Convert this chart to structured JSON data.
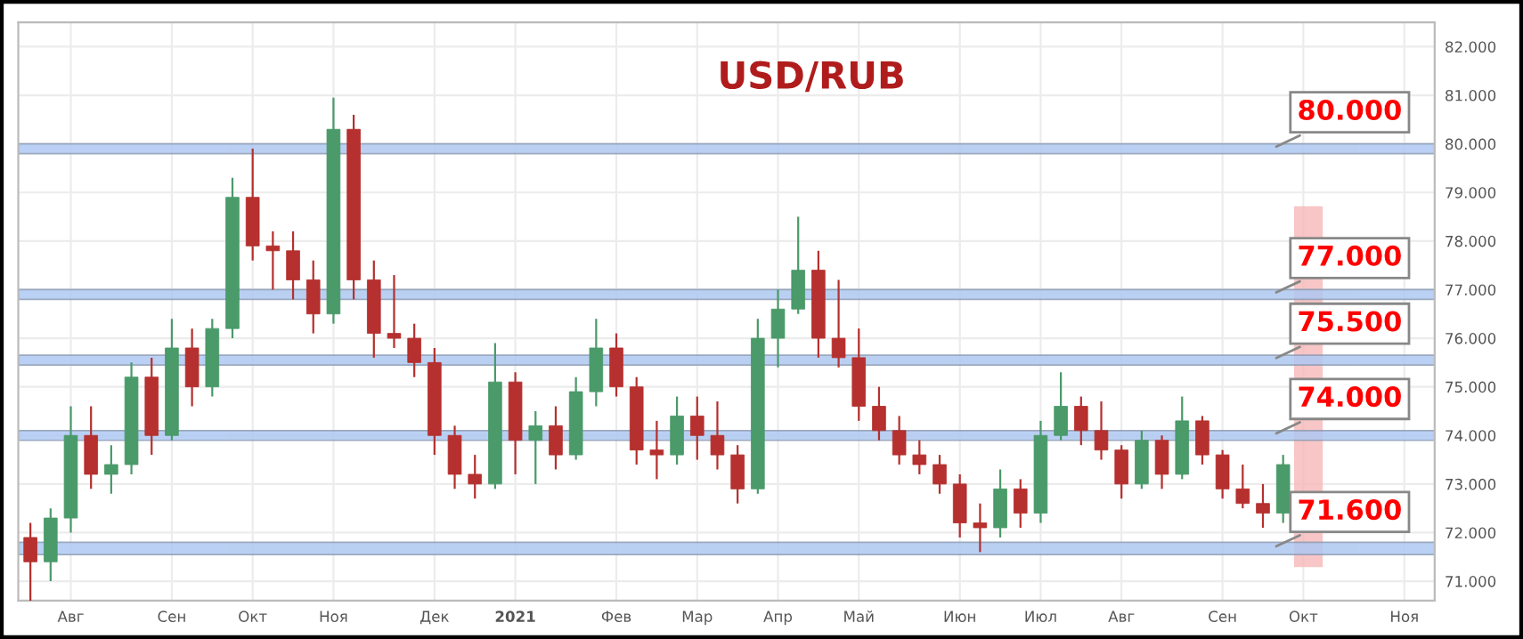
{
  "chart_data": {
    "type": "candlestick",
    "title": "USD/RUB",
    "categories": [
      null,
      null,
      "Авг",
      null,
      null,
      null,
      null,
      "Сен",
      null,
      null,
      null,
      "Окт",
      null,
      null,
      null,
      "Ноя",
      null,
      null,
      null,
      null,
      "Дек",
      null,
      null,
      null,
      "2021",
      null,
      null,
      null,
      null,
      "Фев",
      null,
      null,
      null,
      "Мар",
      null,
      null,
      null,
      "Апр",
      null,
      null,
      null,
      "Май",
      null,
      null,
      null,
      null,
      "Июн",
      null,
      null,
      null,
      "Июл",
      null,
      null,
      null,
      "Авг",
      null,
      null,
      null,
      null,
      "Сен",
      null,
      null,
      null,
      "Окт",
      null,
      null,
      null,
      null,
      "Ноя",
      null
    ],
    "ohlc": [
      [
        71.9,
        72.2,
        70.6,
        71.4
      ],
      [
        71.4,
        72.5,
        71.0,
        72.3
      ],
      [
        72.3,
        74.6,
        72.0,
        74.0
      ],
      [
        74.0,
        74.6,
        72.9,
        73.2
      ],
      [
        73.2,
        73.8,
        72.8,
        73.4
      ],
      [
        73.4,
        75.5,
        73.2,
        75.2
      ],
      [
        75.2,
        75.6,
        73.6,
        74.0
      ],
      [
        74.0,
        76.4,
        73.9,
        75.8
      ],
      [
        75.8,
        76.2,
        74.6,
        75.0
      ],
      [
        75.0,
        76.4,
        74.8,
        76.2
      ],
      [
        76.2,
        79.3,
        76.0,
        78.9
      ],
      [
        78.9,
        79.9,
        77.6,
        77.9
      ],
      [
        77.9,
        78.2,
        77.0,
        77.8
      ],
      [
        77.8,
        78.2,
        76.8,
        77.2
      ],
      [
        77.2,
        77.6,
        76.1,
        76.5
      ],
      [
        76.5,
        80.95,
        76.3,
        80.3
      ],
      [
        80.3,
        80.6,
        76.8,
        77.2
      ],
      [
        77.2,
        77.6,
        75.6,
        76.1
      ],
      [
        76.1,
        77.3,
        75.8,
        76.0
      ],
      [
        76.0,
        76.3,
        75.2,
        75.5
      ],
      [
        75.5,
        75.8,
        73.6,
        74.0
      ],
      [
        74.0,
        74.2,
        72.9,
        73.2
      ],
      [
        73.2,
        73.6,
        72.7,
        73.0
      ],
      [
        73.0,
        75.9,
        72.9,
        75.1
      ],
      [
        75.1,
        75.3,
        73.2,
        73.9
      ],
      [
        73.9,
        74.5,
        73.0,
        74.2
      ],
      [
        74.2,
        74.6,
        73.3,
        73.6
      ],
      [
        73.6,
        75.2,
        73.5,
        74.9
      ],
      [
        74.9,
        76.4,
        74.6,
        75.8
      ],
      [
        75.8,
        76.1,
        74.8,
        75.0
      ],
      [
        75.0,
        75.2,
        73.4,
        73.7
      ],
      [
        73.7,
        74.3,
        73.1,
        73.6
      ],
      [
        73.6,
        74.8,
        73.4,
        74.4
      ],
      [
        74.4,
        74.8,
        73.5,
        74.0
      ],
      [
        74.0,
        74.7,
        73.3,
        73.6
      ],
      [
        73.6,
        73.8,
        72.6,
        72.9
      ],
      [
        72.9,
        76.4,
        72.8,
        76.0
      ],
      [
        76.0,
        77.0,
        75.4,
        76.6
      ],
      [
        76.6,
        78.5,
        76.5,
        77.4
      ],
      [
        77.4,
        77.8,
        75.6,
        76.0
      ],
      [
        76.0,
        77.2,
        75.4,
        75.6
      ],
      [
        75.6,
        76.2,
        74.3,
        74.6
      ],
      [
        74.6,
        75.0,
        73.9,
        74.1
      ],
      [
        74.1,
        74.4,
        73.4,
        73.6
      ],
      [
        73.6,
        73.9,
        73.2,
        73.4
      ],
      [
        73.4,
        73.6,
        72.8,
        73.0
      ],
      [
        73.0,
        73.2,
        71.9,
        72.2
      ],
      [
        72.2,
        72.6,
        71.6,
        72.1
      ],
      [
        72.1,
        73.3,
        71.9,
        72.9
      ],
      [
        72.9,
        73.1,
        72.1,
        72.4
      ],
      [
        72.4,
        74.3,
        72.2,
        74.0
      ],
      [
        74.0,
        75.3,
        73.9,
        74.6
      ],
      [
        74.6,
        74.8,
        73.8,
        74.1
      ],
      [
        74.1,
        74.7,
        73.5,
        73.7
      ],
      [
        73.7,
        73.8,
        72.7,
        73.0
      ],
      [
        73.0,
        74.1,
        72.9,
        73.9
      ],
      [
        73.9,
        74.0,
        72.9,
        73.2
      ],
      [
        73.2,
        74.8,
        73.1,
        74.3
      ],
      [
        74.3,
        74.4,
        73.4,
        73.6
      ],
      [
        73.6,
        73.7,
        72.7,
        72.9
      ],
      [
        72.9,
        73.4,
        72.5,
        72.6
      ],
      [
        72.6,
        73.0,
        72.1,
        72.4
      ],
      [
        72.4,
        73.6,
        72.2,
        73.4
      ],
      null,
      null,
      null,
      null,
      null,
      null,
      null
    ],
    "colors": [
      "#b5302e",
      "#4a9a6a",
      "#4a9a6a",
      "#b5302e",
      "#4a9a6a",
      "#4a9a6a",
      "#b5302e",
      "#4a9a6a",
      "#b5302e",
      "#4a9a6a",
      "#4a9a6a",
      "#b5302e",
      "#b5302e",
      "#b5302e",
      "#b5302e",
      "#4a9a6a",
      "#b5302e",
      "#b5302e",
      "#b5302e",
      "#b5302e",
      "#b5302e",
      "#b5302e",
      "#b5302e",
      "#4a9a6a",
      "#b5302e",
      "#4a9a6a",
      "#b5302e",
      "#4a9a6a",
      "#4a9a6a",
      "#b5302e",
      "#b5302e",
      "#b5302e",
      "#4a9a6a",
      "#b5302e",
      "#b5302e",
      "#b5302e",
      "#4a9a6a",
      "#4a9a6a",
      "#4a9a6a",
      "#b5302e",
      "#b5302e",
      "#b5302e",
      "#b5302e",
      "#b5302e",
      "#b5302e",
      "#b5302e",
      "#b5302e",
      "#b5302e",
      "#4a9a6a",
      "#b5302e",
      "#4a9a6a",
      "#4a9a6a",
      "#b5302e",
      "#b5302e",
      "#b5302e",
      "#4a9a6a",
      "#b5302e",
      "#4a9a6a",
      "#b5302e",
      "#b5302e",
      "#b5302e",
      "#b5302e",
      "#4a9a6a",
      null,
      null,
      null,
      null,
      null,
      null,
      null
    ],
    "ylim": [
      70.6,
      82.5
    ],
    "yticks": [
      {
        "value": 71,
        "label": "71.000"
      },
      {
        "value": 72,
        "label": "72.000"
      },
      {
        "value": 73,
        "label": "73.000"
      },
      {
        "value": 74,
        "label": "74.000"
      },
      {
        "value": 75,
        "label": "75.000"
      },
      {
        "value": 76,
        "label": "76.000"
      },
      {
        "value": 77,
        "label": "77.000"
      },
      {
        "value": 78,
        "label": "78.000"
      },
      {
        "value": 79,
        "label": "79.000"
      },
      {
        "value": 80,
        "label": "80.000"
      },
      {
        "value": 81,
        "label": "81.000"
      },
      {
        "value": 82,
        "label": "82.000"
      }
    ],
    "grid": true,
    "bands": [
      {
        "axis": "y",
        "from": 79.8,
        "to": 80.0,
        "label": "80.000",
        "color": "#aec8f2"
      },
      {
        "axis": "y",
        "from": 76.8,
        "to": 77.0,
        "label": "77.000",
        "color": "#aec8f2"
      },
      {
        "axis": "y",
        "from": 75.45,
        "to": 75.65,
        "label": "75.500",
        "color": "#aec8f2"
      },
      {
        "axis": "y",
        "from": 73.9,
        "to": 74.1,
        "label": "74.000",
        "color": "#aec8f2"
      },
      {
        "axis": "y",
        "from": 71.55,
        "to": 71.8,
        "label": "71.600",
        "color": "#aec8f2"
      }
    ]
  }
}
